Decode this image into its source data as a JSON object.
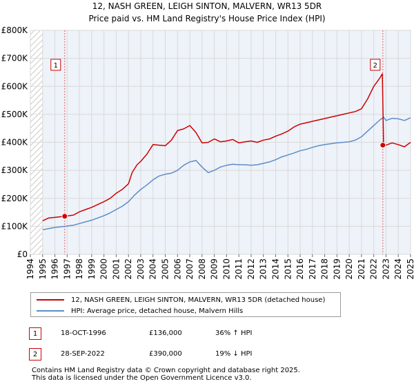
{
  "chart_data": {
    "type": "line",
    "title": "12, NASH GREEN, LEIGH SINTON, MALVERN, WR13 5DR",
    "subtitle": "Price paid vs. HM Land Registry's House Price Index (HPI)",
    "xlabel": "",
    "ylabel": "",
    "xlim": [
      1994,
      2025
    ],
    "ylim": [
      0,
      800000
    ],
    "x_ticks": [
      "1994",
      "1995",
      "1996",
      "1997",
      "1998",
      "1999",
      "2000",
      "2001",
      "2002",
      "2003",
      "2004",
      "2005",
      "2006",
      "2007",
      "2008",
      "2009",
      "2010",
      "2011",
      "2012",
      "2013",
      "2014",
      "2015",
      "2016",
      "2017",
      "2018",
      "2019",
      "2020",
      "2021",
      "2022",
      "2023",
      "2024",
      "2025"
    ],
    "y_ticks": [
      {
        "value": 0,
        "label": "£0"
      },
      {
        "value": 100000,
        "label": "£100K"
      },
      {
        "value": 200000,
        "label": "£200K"
      },
      {
        "value": 300000,
        "label": "£300K"
      },
      {
        "value": 400000,
        "label": "£400K"
      },
      {
        "value": 500000,
        "label": "£500K"
      },
      {
        "value": 600000,
        "label": "£600K"
      },
      {
        "value": 700000,
        "label": "£700K"
      },
      {
        "value": 800000,
        "label": "£800K"
      }
    ],
    "grid": true,
    "hatch_before": 1995.0,
    "hatch_after": 2025.0,
    "series": [
      {
        "name": "12, NASH GREEN, LEIGH SINTON, MALVERN, WR13 5DR (detached house)",
        "color": "#cc0000",
        "x": [
          1995.0,
          1995.5,
          1996.0,
          1996.8,
          1997.5,
          1998.0,
          1998.5,
          1999.0,
          1999.5,
          2000.0,
          2000.5,
          2001.0,
          2001.5,
          2002.0,
          2002.3,
          2002.7,
          2003.0,
          2003.5,
          2004.0,
          2004.5,
          2005.0,
          2005.5,
          2006.0,
          2006.5,
          2007.0,
          2007.5,
          2008.0,
          2008.5,
          2009.0,
          2009.5,
          2010.0,
          2010.5,
          2011.0,
          2011.5,
          2012.0,
          2012.5,
          2013.0,
          2013.5,
          2014.0,
          2014.5,
          2015.0,
          2015.5,
          2016.0,
          2016.5,
          2017.0,
          2017.5,
          2018.0,
          2018.5,
          2019.0,
          2019.5,
          2020.0,
          2020.5,
          2021.0,
          2021.5,
          2022.0,
          2022.5,
          2022.7,
          2022.8,
          2023.0,
          2023.5,
          2024.0,
          2024.5,
          2025.0
        ],
        "values": [
          120000,
          130000,
          132000,
          136000,
          140000,
          152000,
          160000,
          168000,
          178000,
          188000,
          200000,
          218000,
          232000,
          252000,
          292000,
          320000,
          332000,
          358000,
          392000,
          390000,
          388000,
          408000,
          442000,
          448000,
          460000,
          435000,
          398000,
          400000,
          412000,
          402000,
          405000,
          410000,
          398000,
          402000,
          405000,
          400000,
          408000,
          412000,
          422000,
          430000,
          440000,
          455000,
          465000,
          470000,
          475000,
          480000,
          485000,
          490000,
          495000,
          500000,
          505000,
          510000,
          520000,
          555000,
          600000,
          630000,
          645000,
          395000,
          390000,
          398000,
          392000,
          384000,
          400000
        ]
      },
      {
        "name": "HPI: Average price, detached house, Malvern Hills",
        "color": "#5b8cc8",
        "x": [
          1995.0,
          1995.5,
          1996.0,
          1996.8,
          1997.5,
          1998.0,
          1998.5,
          1999.0,
          1999.5,
          2000.0,
          2000.5,
          2001.0,
          2001.5,
          2002.0,
          2002.5,
          2003.0,
          2003.5,
          2004.0,
          2004.5,
          2005.0,
          2005.5,
          2006.0,
          2006.5,
          2007.0,
          2007.5,
          2008.0,
          2008.5,
          2009.0,
          2009.5,
          2010.0,
          2010.5,
          2011.0,
          2011.5,
          2012.0,
          2012.5,
          2013.0,
          2013.5,
          2014.0,
          2014.5,
          2015.0,
          2015.5,
          2016.0,
          2016.5,
          2017.0,
          2017.5,
          2018.0,
          2018.5,
          2019.0,
          2019.5,
          2020.0,
          2020.5,
          2021.0,
          2021.5,
          2022.0,
          2022.5,
          2022.8,
          2023.0,
          2023.5,
          2024.0,
          2024.5,
          2025.0
        ],
        "values": [
          88000,
          92000,
          96000,
          100000,
          104000,
          110000,
          116000,
          122000,
          130000,
          138000,
          148000,
          160000,
          172000,
          188000,
          212000,
          232000,
          248000,
          266000,
          280000,
          286000,
          290000,
          300000,
          318000,
          330000,
          335000,
          312000,
          292000,
          300000,
          312000,
          318000,
          322000,
          320000,
          320000,
          318000,
          320000,
          325000,
          330000,
          338000,
          348000,
          355000,
          362000,
          370000,
          375000,
          382000,
          388000,
          392000,
          395000,
          398000,
          400000,
          402000,
          408000,
          420000,
          440000,
          460000,
          480000,
          490000,
          478000,
          486000,
          484000,
          478000,
          488000
        ]
      }
    ],
    "markers": [
      {
        "id": "1",
        "x": 1996.8,
        "value": 136000
      },
      {
        "id": "2",
        "x": 2022.74,
        "value": 390000
      }
    ]
  },
  "legend": {
    "price_paid": "12, NASH GREEN, LEIGH SINTON, MALVERN, WR13 5DR (detached house)",
    "hpi": "HPI: Average price, detached house, Malvern Hills"
  },
  "transactions": [
    {
      "num": "1",
      "date": "18-OCT-1996",
      "price": "£136,000",
      "delta": "36% ↑ HPI"
    },
    {
      "num": "2",
      "date": "28-SEP-2022",
      "price": "£390,000",
      "delta": "19% ↓ HPI"
    }
  ],
  "footer": {
    "line1": "Contains HM Land Registry data © Crown copyright and database right 2025.",
    "line2": "This data is licensed under the Open Government Licence v3.0."
  },
  "colors": {
    "price": "#cc0000",
    "hpi": "#5b8cc8",
    "grid": "#d9d9d9",
    "plot_bg": "#eef2f9"
  }
}
